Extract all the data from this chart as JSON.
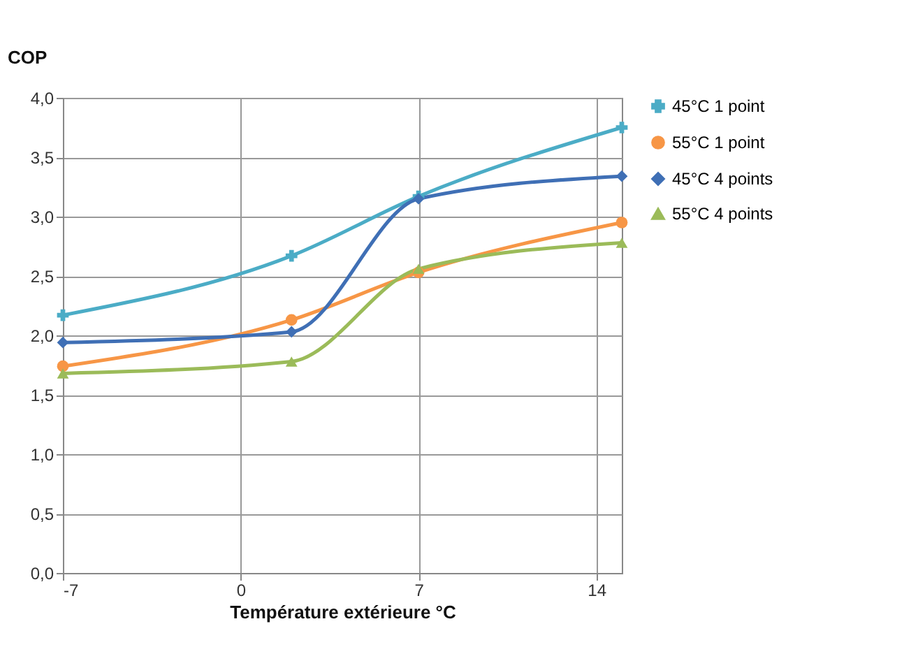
{
  "chart_data": {
    "type": "line",
    "ylabel": "COP",
    "xlabel": "Température extérieure °C",
    "x": [
      -7,
      2,
      7,
      15
    ],
    "xlim": [
      -7,
      15
    ],
    "xticks": [
      -7,
      0,
      7,
      14
    ],
    "ylim": [
      0,
      4
    ],
    "yticks": [
      {
        "value": 0,
        "label": "0,0"
      },
      {
        "value": 0.5,
        "label": "0,5"
      },
      {
        "value": 1,
        "label": "1,0"
      },
      {
        "value": 1.5,
        "label": "1,5"
      },
      {
        "value": 2,
        "label": "2,0"
      },
      {
        "value": 2.5,
        "label": "2,5"
      },
      {
        "value": 3,
        "label": "3,0"
      },
      {
        "value": 3.5,
        "label": "3,5"
      },
      {
        "value": 4,
        "label": "4,0"
      }
    ],
    "grid": true,
    "legend": "right",
    "line_style": "solid",
    "series": [
      {
        "name": "45°C  1 point",
        "color": "#4bacc6",
        "marker": "cross",
        "values": [
          2.17,
          2.67,
          3.17,
          3.75
        ]
      },
      {
        "name": "55°C 1 point",
        "color": "#f79646",
        "marker": "circle",
        "values": [
          1.74,
          2.13,
          2.53,
          2.95
        ]
      },
      {
        "name": "45°C 4 points",
        "color": "#3f6fb5",
        "marker": "diamond",
        "values": [
          1.94,
          2.03,
          3.15,
          3.34
        ]
      },
      {
        "name": "55°C 4 points",
        "color": "#9bbb59",
        "marker": "triangle",
        "values": [
          1.68,
          1.78,
          2.56,
          2.78
        ]
      }
    ]
  }
}
